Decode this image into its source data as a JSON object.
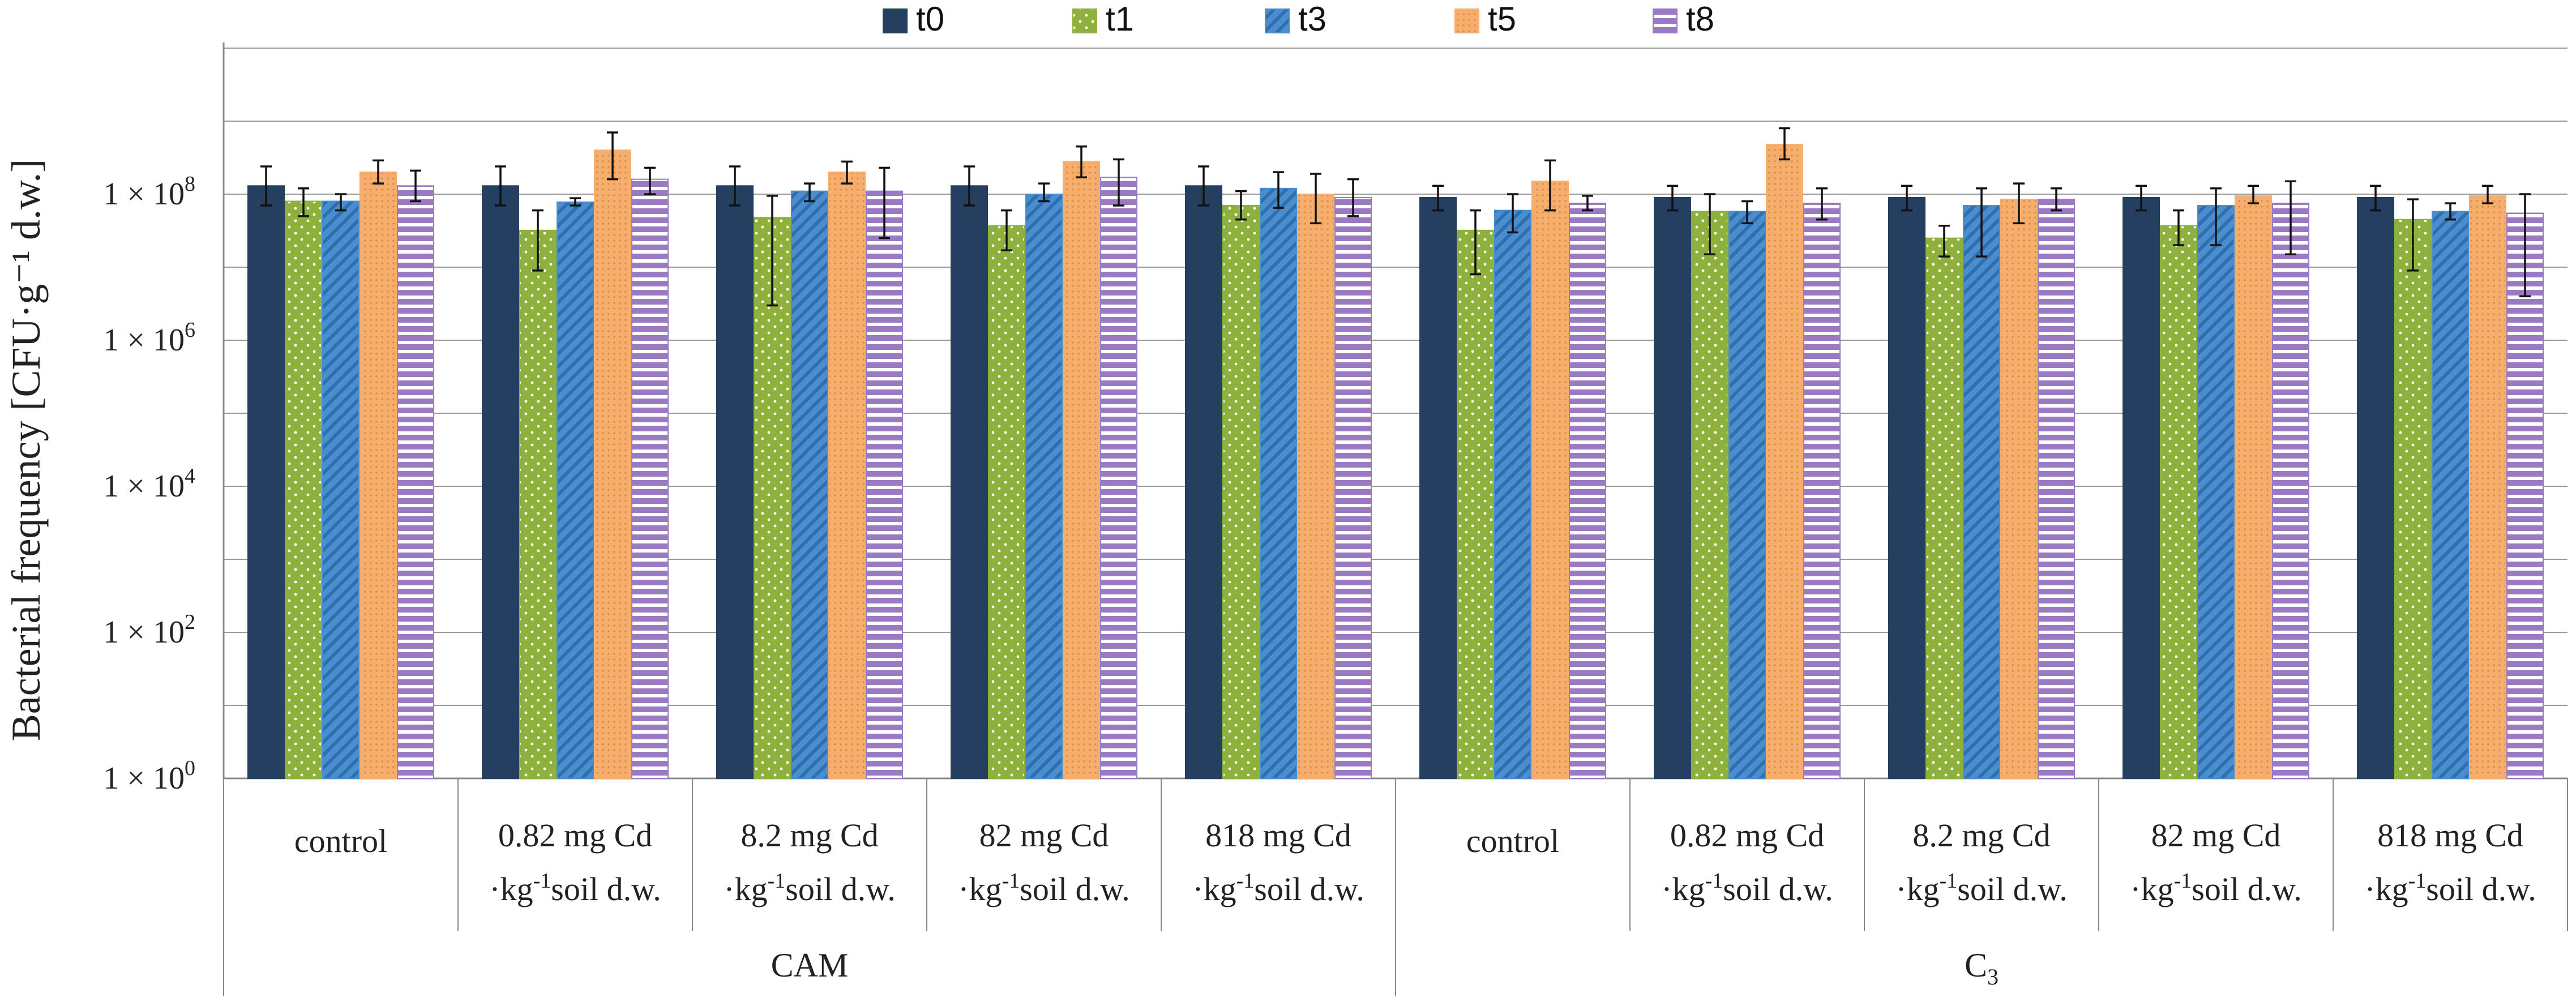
{
  "chart_data": {
    "type": "bar",
    "title": "",
    "ylabel": "Bacterial frequency [CFU·g⁻¹ d.w.]",
    "yscale": "log10",
    "ylim": [
      1,
      10000000000
    ],
    "yticks": [
      {
        "value": 1,
        "mantissa": "1 × 10",
        "exp": "0"
      },
      {
        "value": 100,
        "mantissa": "1 × 10",
        "exp": "2"
      },
      {
        "value": 10000,
        "mantissa": "1 × 10",
        "exp": "4"
      },
      {
        "value": 1000000,
        "mantissa": "1 × 10",
        "exp": "6"
      },
      {
        "value": 100000000,
        "mantissa": "1 × 10",
        "exp": "8"
      }
    ],
    "grid": true,
    "legend": {
      "position": "top-center",
      "entries": [
        "t0",
        "t1",
        "t3",
        "t5",
        "t8"
      ]
    },
    "categories": [
      {
        "line1": "control",
        "line2_pre": "",
        "line2_sup": "",
        "line2_post": ""
      },
      {
        "line1": "0.82 mg Cd",
        "line2_pre": "·kg",
        "line2_sup": "-1",
        "line2_post": "soil d.w."
      },
      {
        "line1": "8.2 mg Cd",
        "line2_pre": "·kg",
        "line2_sup": "-1",
        "line2_post": "soil d.w."
      },
      {
        "line1": "82 mg Cd",
        "line2_pre": "·kg",
        "line2_sup": "-1",
        "line2_post": "soil d.w."
      },
      {
        "line1": "818 mg Cd",
        "line2_pre": "·kg",
        "line2_sup": "-1",
        "line2_post": "soil d.w."
      },
      {
        "line1": "control",
        "line2_pre": "",
        "line2_sup": "",
        "line2_post": ""
      },
      {
        "line1": "0.82 mg Cd",
        "line2_pre": "·kg",
        "line2_sup": "-1",
        "line2_post": "soil d.w."
      },
      {
        "line1": "8.2 mg Cd",
        "line2_pre": "·kg",
        "line2_sup": "-1",
        "line2_post": "soil d.w."
      },
      {
        "line1": "82 mg Cd",
        "line2_pre": "·kg",
        "line2_sup": "-1",
        "line2_post": "soil d.w."
      },
      {
        "line1": "818 mg Cd",
        "line2_pre": "·kg",
        "line2_sup": "-1",
        "line2_post": "soil d.w."
      }
    ],
    "groups": [
      {
        "name": "CAM",
        "sub": "",
        "from": 0,
        "to": 4
      },
      {
        "name": "C",
        "sub": "3",
        "from": 5,
        "to": 9
      }
    ],
    "series": [
      {
        "name": "t0",
        "color": "#243f60",
        "values": [
          130000000.0,
          130000000.0,
          130000000.0,
          130000000.0,
          130000000.0,
          90000000.0,
          90000000.0,
          90000000.0,
          90000000.0,
          90000000.0
        ],
        "err_low": [
          70000000.0,
          70000000.0,
          70000000.0,
          70000000.0,
          70000000.0,
          60000000.0,
          60000000.0,
          60000000.0,
          60000000.0,
          60000000.0
        ],
        "err_high": [
          240000000.0,
          240000000.0,
          240000000.0,
          240000000.0,
          240000000.0,
          130000000.0,
          130000000.0,
          130000000.0,
          130000000.0,
          130000000.0
        ]
      },
      {
        "name": "t1",
        "color": "#8db13c",
        "values": [
          80000000.0,
          32000000.0,
          48000000.0,
          37000000.0,
          70000000.0,
          32000000.0,
          58000000.0,
          25000000.0,
          37000000.0,
          45000000.0
        ],
        "err_low": [
          50000000.0,
          9000000.0,
          3000000.0,
          17000000.0,
          45000000.0,
          8000000.0,
          15000000.0,
          14000000.0,
          20000000.0,
          9000000.0
        ],
        "err_high": [
          120000000.0,
          60000000.0,
          95000000.0,
          60000000.0,
          110000000.0,
          60000000.0,
          100000000.0,
          37000000.0,
          60000000.0,
          85000000.0
        ]
      },
      {
        "name": "t3",
        "color": "#4a8ed0",
        "values": [
          80000000.0,
          78000000.0,
          110000000.0,
          100000000.0,
          120000000.0,
          60000000.0,
          58000000.0,
          70000000.0,
          70000000.0,
          58000000.0
        ],
        "err_low": [
          60000000.0,
          70000000.0,
          80000000.0,
          80000000.0,
          65000000.0,
          30000000.0,
          40000000.0,
          14000000.0,
          20000000.0,
          45000000.0
        ],
        "err_high": [
          100000000.0,
          88000000.0,
          140000000.0,
          140000000.0,
          200000000.0,
          100000000.0,
          80000000.0,
          120000000.0,
          120000000.0,
          75000000.0
        ]
      },
      {
        "name": "t5",
        "color": "#f6ae6e",
        "values": [
          200000000.0,
          400000000.0,
          200000000.0,
          280000000.0,
          100000000.0,
          150000000.0,
          480000000.0,
          85000000.0,
          95000000.0,
          95000000.0
        ],
        "err_low": [
          140000000.0,
          160000000.0,
          140000000.0,
          170000000.0,
          40000000.0,
          60000000.0,
          300000000.0,
          40000000.0,
          75000000.0,
          75000000.0
        ],
        "err_high": [
          290000000.0,
          700000000.0,
          280000000.0,
          450000000.0,
          190000000.0,
          290000000.0,
          800000000.0,
          140000000.0,
          130000000.0,
          130000000.0
        ]
      },
      {
        "name": "t8",
        "color": "#9a7ac2",
        "values": [
          130000000.0,
          160000000.0,
          110000000.0,
          170000000.0,
          90000000.0,
          75000000.0,
          75000000.0,
          85000000.0,
          75000000.0,
          55000000.0
        ],
        "err_low": [
          80000000.0,
          100000000.0,
          25000000.0,
          70000000.0,
          50000000.0,
          60000000.0,
          45000000.0,
          60000000.0,
          15000000.0,
          4000000.0
        ],
        "err_high": [
          210000000.0,
          230000000.0,
          230000000.0,
          300000000.0,
          160000000.0,
          95000000.0,
          120000000.0,
          120000000.0,
          150000000.0,
          100000000.0
        ]
      }
    ]
  }
}
